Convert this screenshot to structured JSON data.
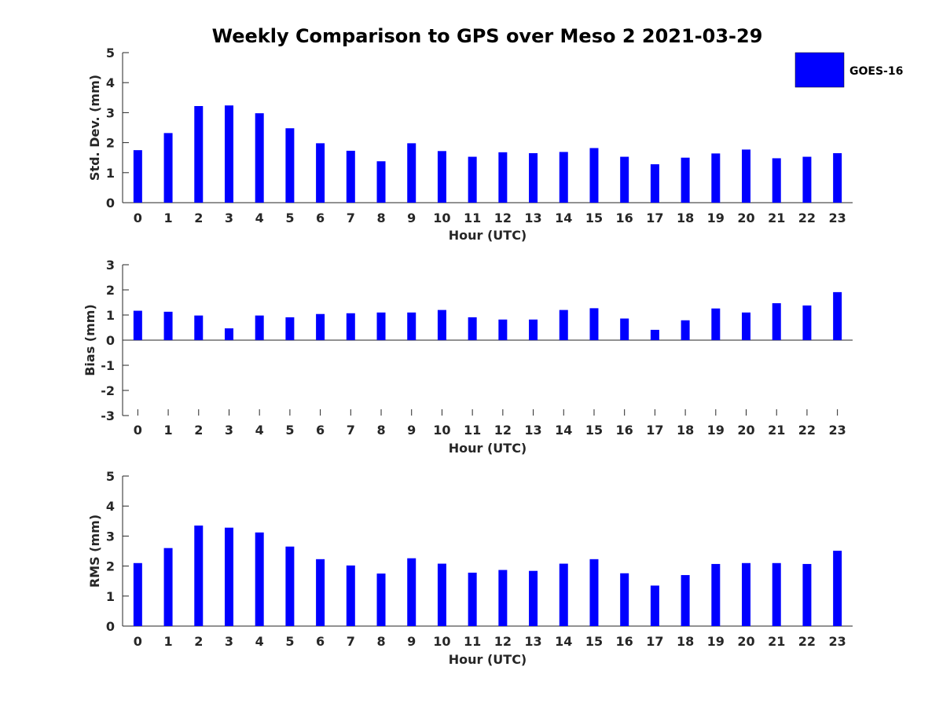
{
  "chart_data": {
    "title": "Weekly Comparison to GPS over Meso 2 2021-03-29",
    "legend": {
      "entries": [
        "GOES-16"
      ],
      "placement": "top-right",
      "color": "#0000ff"
    },
    "subplots": [
      {
        "type": "bar",
        "xlabel": "Hour (UTC)",
        "ylabel": "Std. Dev. (mm)",
        "ylim": [
          0,
          5
        ],
        "yticks": [
          "0",
          "1",
          "2",
          "3",
          "4",
          "5"
        ],
        "categories": [
          "0",
          "1",
          "2",
          "3",
          "4",
          "5",
          "6",
          "7",
          "8",
          "9",
          "10",
          "11",
          "12",
          "13",
          "14",
          "15",
          "16",
          "17",
          "18",
          "19",
          "20",
          "21",
          "22",
          "23"
        ],
        "series": [
          {
            "name": "GOES-16",
            "color": "#0000ff",
            "values": [
              1.75,
              2.32,
              3.22,
              3.24,
              2.98,
              2.48,
              1.98,
              1.73,
              1.38,
              1.98,
              1.72,
              1.53,
              1.68,
              1.65,
              1.69,
              1.82,
              1.53,
              1.28,
              1.5,
              1.64,
              1.77,
              1.48,
              1.53,
              1.65
            ]
          }
        ]
      },
      {
        "type": "bar",
        "xlabel": "Hour (UTC)",
        "ylabel": "Bias (mm)",
        "ylim": [
          -3,
          3
        ],
        "yticks": [
          "-3",
          "-2",
          "-1",
          "0",
          "1",
          "2",
          "3"
        ],
        "categories": [
          "0",
          "1",
          "2",
          "3",
          "4",
          "5",
          "6",
          "7",
          "8",
          "9",
          "10",
          "11",
          "12",
          "13",
          "14",
          "15",
          "16",
          "17",
          "18",
          "19",
          "20",
          "21",
          "22",
          "23"
        ],
        "series": [
          {
            "name": "GOES-16",
            "color": "#0000ff",
            "values": [
              1.17,
              1.13,
              0.98,
              0.47,
              0.98,
              0.91,
              1.04,
              1.07,
              1.1,
              1.1,
              1.2,
              0.91,
              0.82,
              0.82,
              1.2,
              1.27,
              0.86,
              0.41,
              0.79,
              1.26,
              1.1,
              1.47,
              1.38,
              1.91
            ]
          }
        ]
      },
      {
        "type": "bar",
        "xlabel": "Hour (UTC)",
        "ylabel": "RMS (mm)",
        "ylim": [
          0,
          5
        ],
        "yticks": [
          "0",
          "1",
          "2",
          "3",
          "4",
          "5"
        ],
        "categories": [
          "0",
          "1",
          "2",
          "3",
          "4",
          "5",
          "6",
          "7",
          "8",
          "9",
          "10",
          "11",
          "12",
          "13",
          "14",
          "15",
          "16",
          "17",
          "18",
          "19",
          "20",
          "21",
          "22",
          "23"
        ],
        "series": [
          {
            "name": "GOES-16",
            "color": "#0000ff",
            "values": [
              2.1,
              2.6,
              3.35,
              3.28,
              3.12,
              2.65,
              2.23,
              2.02,
              1.75,
              2.26,
              2.08,
              1.78,
              1.87,
              1.84,
              2.08,
              2.23,
              1.76,
              1.35,
              1.7,
              2.07,
              2.1,
              2.1,
              2.07,
              2.51
            ]
          }
        ]
      }
    ]
  }
}
